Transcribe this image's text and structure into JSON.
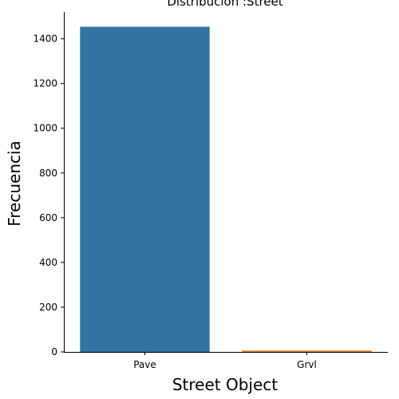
{
  "chart_data": {
    "type": "bar",
    "title": "Distribución :Street",
    "xlabel": "Street Object",
    "ylabel": "Frecuencia",
    "categories": [
      "Pave",
      "Grvl"
    ],
    "values": [
      1454,
      6
    ],
    "colors": [
      "#3274a1",
      "#e1812c"
    ],
    "ylim": [
      0,
      1520
    ],
    "yticks": [
      0,
      200,
      400,
      600,
      800,
      1000,
      1200,
      1400
    ],
    "grid": false,
    "legend": "none"
  }
}
